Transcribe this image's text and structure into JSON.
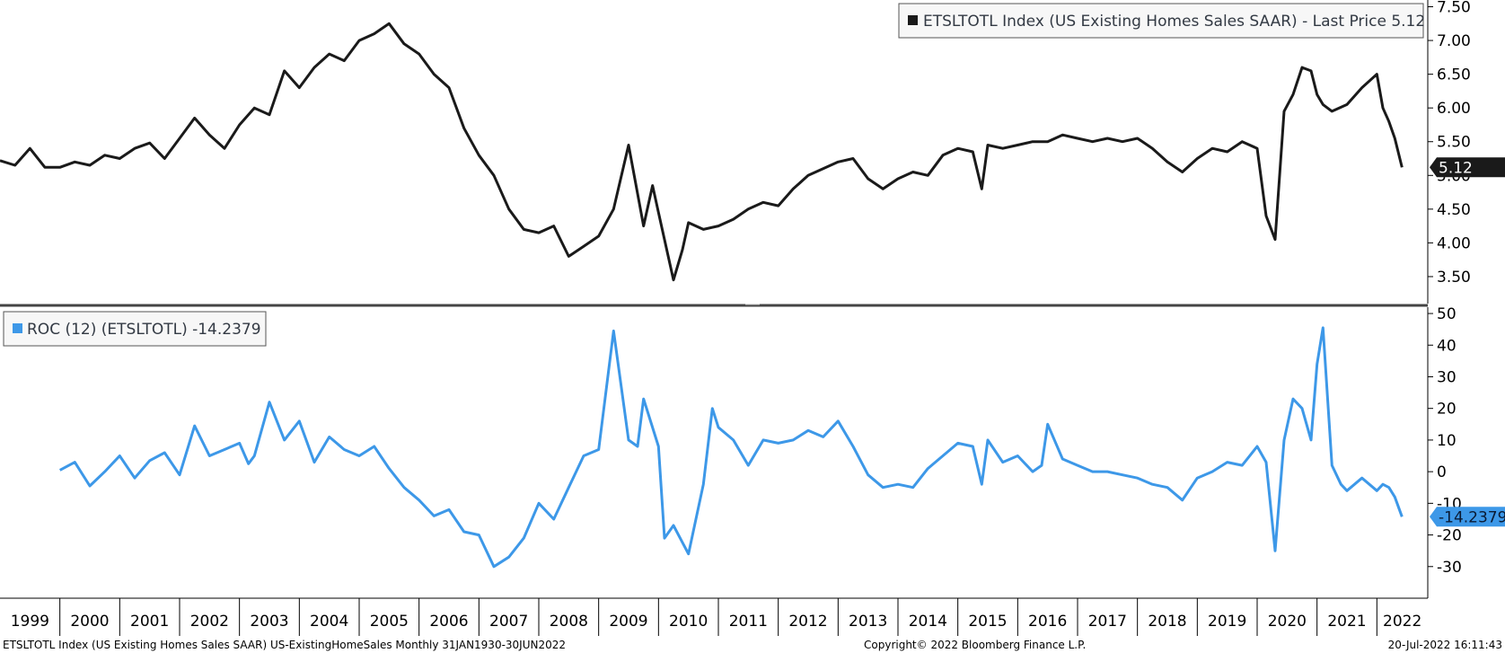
{
  "chart_data": [
    {
      "type": "line",
      "legend": "ETSLTOTL Index (US Existing Homes Sales SAAR) - Last Price 5.12",
      "last_value_tag": "5.12",
      "color": "#1a1a1a",
      "ylim": [
        3.1,
        7.6
      ],
      "yticks": [
        "7.50",
        "7.00",
        "6.50",
        "6.00",
        "5.50",
        "5.00",
        "4.50",
        "4.00",
        "3.50"
      ],
      "ytick_values": [
        7.5,
        7.0,
        6.5,
        6.0,
        5.5,
        5.0,
        4.5,
        4.0,
        3.5
      ],
      "legend_position": "top-right",
      "series": [
        {
          "x": [
            1999.0,
            1999.25,
            1999.5,
            1999.75,
            2000.0,
            2000.25,
            2000.5,
            2000.75,
            2001.0,
            2001.25,
            2001.5,
            2001.75,
            2002.0,
            2002.25,
            2002.5,
            2002.75,
            2003.0,
            2003.25,
            2003.5,
            2003.75,
            2004.0,
            2004.25,
            2004.5,
            2004.75,
            2005.0,
            2005.25,
            2005.5,
            2005.75,
            2006.0,
            2006.25,
            2006.5,
            2006.75,
            2007.0,
            2007.25,
            2007.5,
            2007.75,
            2008.0,
            2008.25,
            2008.5,
            2008.75,
            2009.0,
            2009.25,
            2009.5,
            2009.75,
            2009.9,
            2010.0,
            2010.25,
            2010.4,
            2010.5,
            2010.75,
            2011.0,
            2011.25,
            2011.5,
            2011.75,
            2012.0,
            2012.25,
            2012.5,
            2012.75,
            2013.0,
            2013.25,
            2013.5,
            2013.75,
            2014.0,
            2014.25,
            2014.5,
            2014.75,
            2015.0,
            2015.25,
            2015.4,
            2015.5,
            2015.75,
            2016.0,
            2016.25,
            2016.5,
            2016.75,
            2017.0,
            2017.25,
            2017.5,
            2017.75,
            2018.0,
            2018.25,
            2018.5,
            2018.75,
            2019.0,
            2019.25,
            2019.5,
            2019.75,
            2020.0,
            2020.15,
            2020.3,
            2020.45,
            2020.6,
            2020.75,
            2020.9,
            2021.0,
            2021.1,
            2021.25,
            2021.5,
            2021.75,
            2022.0,
            2022.1,
            2022.2,
            2022.3,
            2022.42
          ],
          "y": [
            5.22,
            5.15,
            5.4,
            5.12,
            5.12,
            5.2,
            5.15,
            5.3,
            5.25,
            5.4,
            5.48,
            5.25,
            5.55,
            5.85,
            5.6,
            5.4,
            5.75,
            6.0,
            5.9,
            6.55,
            6.3,
            6.6,
            6.8,
            6.7,
            7.0,
            7.1,
            7.25,
            6.95,
            6.8,
            6.5,
            6.3,
            5.7,
            5.3,
            5.0,
            4.5,
            4.2,
            4.15,
            4.25,
            3.8,
            3.95,
            4.1,
            4.5,
            5.45,
            4.25,
            4.85,
            4.45,
            3.45,
            3.9,
            4.3,
            4.2,
            4.25,
            4.35,
            4.5,
            4.6,
            4.55,
            4.8,
            5.0,
            5.1,
            5.2,
            5.25,
            4.95,
            4.8,
            4.95,
            5.05,
            5.0,
            5.3,
            5.4,
            5.35,
            4.8,
            5.45,
            5.4,
            5.45,
            5.5,
            5.5,
            5.6,
            5.55,
            5.5,
            5.55,
            5.5,
            5.55,
            5.4,
            5.2,
            5.05,
            5.25,
            5.4,
            5.35,
            5.5,
            5.4,
            4.4,
            4.05,
            5.95,
            6.2,
            6.6,
            6.55,
            6.2,
            6.05,
            5.95,
            6.05,
            6.3,
            6.5,
            6.0,
            5.8,
            5.55,
            5.12
          ]
        }
      ]
    },
    {
      "type": "line",
      "legend": "ROC (12) (ETSLTOTL) -14.2379",
      "last_value_tag": "-14.2379",
      "color": "#3d98e8",
      "ylim": [
        -40,
        52
      ],
      "yticks": [
        "50",
        "40",
        "30",
        "20",
        "10",
        "0",
        "-10",
        "-20",
        "-30"
      ],
      "ytick_values": [
        50,
        40,
        30,
        20,
        10,
        0,
        -10,
        -20,
        -30
      ],
      "legend_position": "top-left",
      "series": [
        {
          "x": [
            2000.0,
            2000.25,
            2000.5,
            2000.75,
            2001.0,
            2001.25,
            2001.5,
            2001.75,
            2002.0,
            2002.25,
            2002.5,
            2002.75,
            2003.0,
            2003.15,
            2003.25,
            2003.5,
            2003.75,
            2004.0,
            2004.25,
            2004.5,
            2004.75,
            2005.0,
            2005.25,
            2005.5,
            2005.75,
            2006.0,
            2006.25,
            2006.5,
            2006.75,
            2007.0,
            2007.25,
            2007.5,
            2007.75,
            2008.0,
            2008.25,
            2008.5,
            2008.75,
            2009.0,
            2009.25,
            2009.5,
            2009.65,
            2009.75,
            2010.0,
            2010.1,
            2010.25,
            2010.5,
            2010.75,
            2010.9,
            2011.0,
            2011.25,
            2011.5,
            2011.75,
            2012.0,
            2012.25,
            2012.5,
            2012.75,
            2013.0,
            2013.25,
            2013.5,
            2013.75,
            2014.0,
            2014.25,
            2014.5,
            2014.75,
            2015.0,
            2015.25,
            2015.4,
            2015.5,
            2015.75,
            2016.0,
            2016.25,
            2016.4,
            2016.5,
            2016.75,
            2017.0,
            2017.25,
            2017.5,
            2017.75,
            2018.0,
            2018.25,
            2018.5,
            2018.75,
            2019.0,
            2019.25,
            2019.5,
            2019.75,
            2020.0,
            2020.15,
            2020.3,
            2020.45,
            2020.6,
            2020.75,
            2020.9,
            2021.0,
            2021.1,
            2021.25,
            2021.4,
            2021.5,
            2021.75,
            2022.0,
            2022.1,
            2022.2,
            2022.3,
            2022.42
          ],
          "y": [
            0.5,
            3.0,
            -4.5,
            0.0,
            5.0,
            -2.0,
            3.5,
            6.0,
            -1.0,
            14.5,
            5.0,
            7.0,
            9.0,
            2.5,
            5.0,
            22.0,
            10.0,
            16.0,
            3.0,
            11.0,
            7.0,
            5.0,
            8.0,
            1.0,
            -5.0,
            -9.0,
            -14.0,
            -12.0,
            -19.0,
            -20.0,
            -30.0,
            -27.0,
            -21.0,
            -10.0,
            -15.0,
            -5.0,
            5.0,
            7.0,
            44.5,
            10.0,
            8.0,
            23.0,
            8.0,
            -21.0,
            -17.0,
            -26.0,
            -4.0,
            20.0,
            14.0,
            10.0,
            2.0,
            10.0,
            9.0,
            10.0,
            13.0,
            11.0,
            16.0,
            8.0,
            -1.0,
            -5.0,
            -4.0,
            -5.0,
            1.0,
            5.0,
            9.0,
            8.0,
            -4.0,
            10.0,
            3.0,
            5.0,
            0.0,
            2.0,
            15.0,
            4.0,
            2.0,
            0.0,
            0.0,
            -1.0,
            -2.0,
            -4.0,
            -5.0,
            -9.0,
            -2.0,
            0.0,
            3.0,
            2.0,
            8.0,
            3.0,
            -25.0,
            10.0,
            23.0,
            20.0,
            10.0,
            34.0,
            45.5,
            2.0,
            -4.0,
            -6.0,
            -2.0,
            -6.0,
            -4.0,
            -5.0,
            -8.0,
            -14.2379
          ]
        }
      ]
    }
  ],
  "x_axis": {
    "years": [
      "1999",
      "2000",
      "2001",
      "2002",
      "2003",
      "2004",
      "2005",
      "2006",
      "2007",
      "2008",
      "2009",
      "2010",
      "2011",
      "2012",
      "2013",
      "2014",
      "2015",
      "2016",
      "2017",
      "2018",
      "2019",
      "2020",
      "2021",
      "2022"
    ],
    "range": [
      1999.0,
      2022.85
    ]
  },
  "footer": {
    "left": "ETSLTOTL Index (US Existing Homes Sales SAAR) US-ExistingHomeSales  Monthly 31JAN1930-30JUN2022",
    "center": "Copyright© 2022 Bloomberg Finance L.P.",
    "right": "20-Jul-2022 16:11:43"
  },
  "colors": {
    "price_line": "#1a1a1a",
    "roc_line": "#3d98e8",
    "tag_dark": "#1a1a1a",
    "tag_blue": "#3d98e8"
  }
}
